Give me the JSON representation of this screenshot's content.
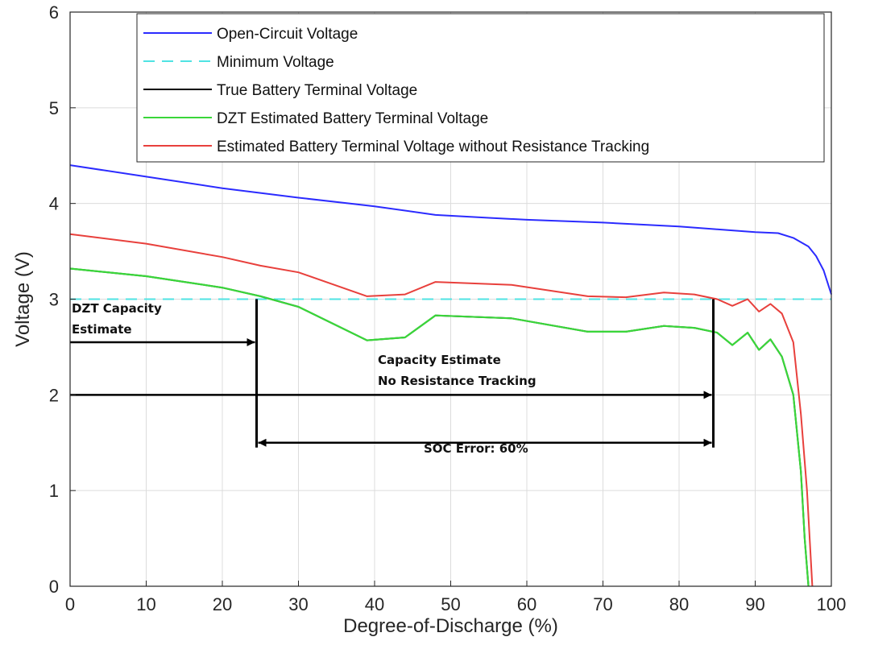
{
  "chart_data": {
    "type": "line",
    "title": "",
    "xlabel": "Degree-of-Discharge (%)",
    "ylabel": "Voltage (V)",
    "xlim": [
      0,
      100
    ],
    "ylim": [
      0,
      6
    ],
    "xticks": [
      0,
      10,
      20,
      30,
      40,
      50,
      60,
      70,
      80,
      90,
      100
    ],
    "yticks": [
      0,
      1,
      2,
      3,
      4,
      5,
      6
    ],
    "grid": true,
    "legend_position": "top-right",
    "series": [
      {
        "name": "Open-Circuit Voltage",
        "color": "#2b2bff",
        "style": "solid",
        "x": [
          0,
          10,
          20,
          30,
          40,
          48,
          55,
          60,
          70,
          80,
          85,
          90,
          93,
          95,
          97,
          98,
          99,
          100
        ],
        "y": [
          4.4,
          4.28,
          4.16,
          4.06,
          3.97,
          3.88,
          3.85,
          3.83,
          3.8,
          3.76,
          3.73,
          3.7,
          3.69,
          3.64,
          3.55,
          3.45,
          3.3,
          3.05
        ]
      },
      {
        "name": "Minimum Voltage",
        "color": "#4fe3e3",
        "style": "dashed",
        "x": [
          0,
          100
        ],
        "y": [
          3.0,
          3.0
        ]
      },
      {
        "name": "True Battery Terminal Voltage",
        "color": "#000000",
        "style": "solid",
        "x": [
          0,
          10,
          20,
          25,
          30,
          39,
          44,
          48,
          58,
          68,
          73,
          78,
          82,
          85,
          87,
          89,
          90.5,
          92,
          93.5,
          95,
          96,
          96.5,
          97
        ],
        "y": [
          3.32,
          3.24,
          3.12,
          3.03,
          2.92,
          2.57,
          2.6,
          2.83,
          2.8,
          2.66,
          2.66,
          2.72,
          2.7,
          2.65,
          2.52,
          2.65,
          2.47,
          2.58,
          2.4,
          2.0,
          1.2,
          0.5,
          0.0
        ]
      },
      {
        "name": "DZT Estimated Battery Terminal Voltage",
        "color": "#3ad63a",
        "style": "solid",
        "x": [
          0,
          10,
          20,
          25,
          30,
          39,
          44,
          48,
          58,
          68,
          73,
          78,
          82,
          85,
          87,
          89,
          90.5,
          92,
          93.5,
          95,
          96,
          96.5,
          97
        ],
        "y": [
          3.32,
          3.24,
          3.12,
          3.03,
          2.92,
          2.57,
          2.6,
          2.83,
          2.8,
          2.66,
          2.66,
          2.72,
          2.7,
          2.65,
          2.52,
          2.65,
          2.47,
          2.58,
          2.4,
          2.0,
          1.2,
          0.5,
          0.0
        ]
      },
      {
        "name": "Estimated Battery Terminal Voltage without Resistance Tracking",
        "color": "#e8403c",
        "style": "solid",
        "x": [
          0,
          10,
          20,
          25,
          30,
          39,
          44,
          48,
          58,
          68,
          73,
          78,
          82,
          85,
          87,
          89,
          90.5,
          92,
          93.5,
          95,
          96,
          96.8,
          97.5
        ],
        "y": [
          3.68,
          3.58,
          3.44,
          3.35,
          3.28,
          3.03,
          3.05,
          3.18,
          3.15,
          3.03,
          3.02,
          3.07,
          3.05,
          3.0,
          2.93,
          3.0,
          2.87,
          2.95,
          2.85,
          2.55,
          1.8,
          1.0,
          0.0
        ]
      }
    ],
    "annotations": {
      "dzt_line1": "DZT Capacity",
      "dzt_line2": "Estimate",
      "cap_line1": "Capacity Estimate",
      "cap_line2": "No Resistance Tracking",
      "soc_error": "SOC Error:  60%",
      "dzt_capacity_x": 24.5,
      "no_resistance_capacity_x": 84.5,
      "dzt_arrow_y": 2.55,
      "cap_arrow_y": 2.0,
      "soc_arrow_y": 1.5
    }
  }
}
